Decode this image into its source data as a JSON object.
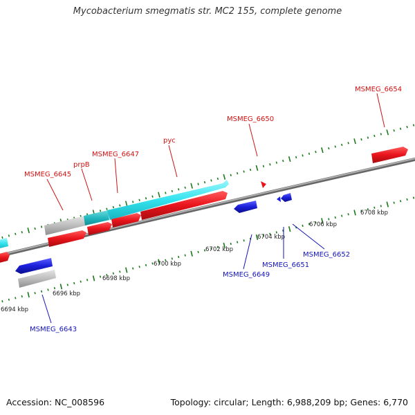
{
  "title": "Mycobacterium smegmatis str. MC2 155, complete genome",
  "footer": {
    "accession": "Accession: NC_008596",
    "summary": "Topology: circular; Length: 6,988,209 bp; Genes: 6,770"
  },
  "colors": {
    "forward_gene": "#e8141b",
    "reverse_gene": "#1a1fd9",
    "cyan_feature": "#33e3ee",
    "gray_feature": "#b8b8b8",
    "tick": "#1a7a1a",
    "backbone": "#808080",
    "label_forward": "#d11111",
    "label_reverse": "#1313b8"
  },
  "kbp_ticks": [
    {
      "label": "6694 kbp"
    },
    {
      "label": "6696 kbp"
    },
    {
      "label": "6698 kbp"
    },
    {
      "label": "6700 kbp"
    },
    {
      "label": "6702 kbp"
    },
    {
      "label": "6704 kbp"
    },
    {
      "label": "6706 kbp"
    },
    {
      "label": "6708 kbp"
    }
  ],
  "forward_labels": [
    {
      "text": "MSMEG_6645"
    },
    {
      "text": "prpB"
    },
    {
      "text": "MSMEG_6647"
    },
    {
      "text": "pyc"
    },
    {
      "text": "MSMEG_6650"
    },
    {
      "text": "MSMEG_6654"
    }
  ],
  "reverse_labels": [
    {
      "text": "MSMEG_6643"
    },
    {
      "text": "MSMEG_6649"
    },
    {
      "text": "MSMEG_6651"
    },
    {
      "text": "MSMEG_6652"
    }
  ]
}
